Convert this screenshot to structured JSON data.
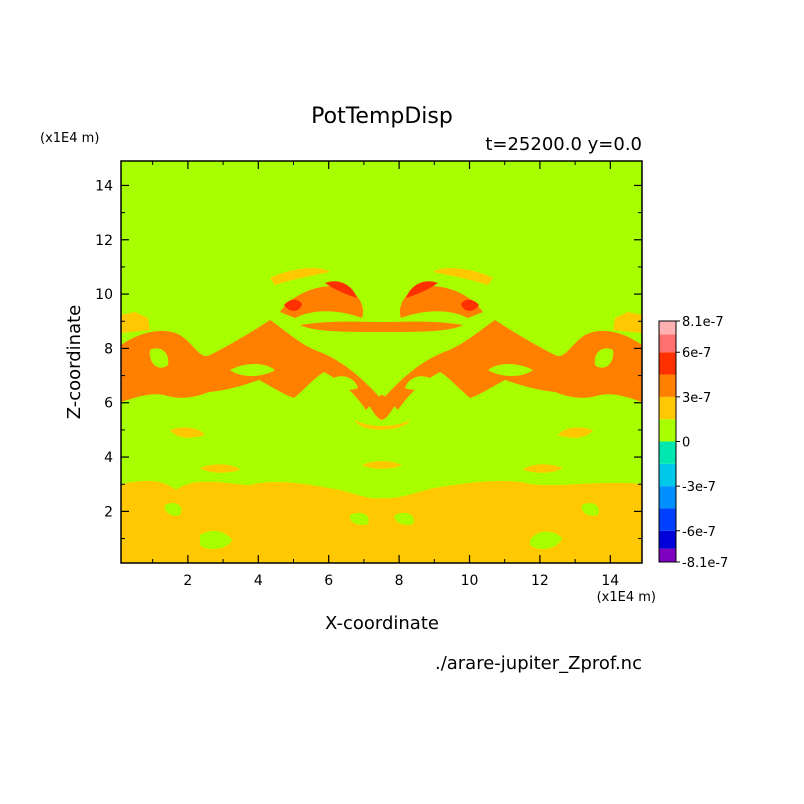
{
  "chart_data": {
    "type": "heatmap",
    "title": "PotTempDisp",
    "subtitle": "t=25200.0 y=0.0",
    "xlabel": "X-coordinate",
    "ylabel": "Z-coordinate",
    "x_unit": "(x1E4 m)",
    "y_unit": "(x1E4 m)",
    "source_file": "./arare-jupiter_Zprof.nc",
    "xlim": [
      0.1,
      14.9
    ],
    "ylim": [
      0.1,
      14.9
    ],
    "x_ticks": [
      2,
      4,
      6,
      8,
      10,
      12,
      14
    ],
    "y_ticks": [
      2,
      4,
      6,
      8,
      10,
      12,
      14
    ],
    "colorbar": {
      "tick_labels": [
        "8.1e-7",
        "6e-7",
        "3e-7",
        "0",
        "-3e-7",
        "-6e-7",
        "-8.1e-7"
      ],
      "levels": [
        -8.1e-07,
        -7.2e-07,
        -6e-07,
        -4.5e-07,
        -3e-07,
        -1.5e-07,
        0,
        1.5e-07,
        3e-07,
        4.5e-07,
        6e-07,
        7.2e-07,
        8.1e-07
      ],
      "colors": [
        "#7f00c0",
        "#0000d8",
        "#0040ff",
        "#0090ff",
        "#00c8e8",
        "#00e8b0",
        "#a8ff00",
        "#ffc800",
        "#ff8000",
        "#ff3000",
        "#ff7070",
        "#ffb0b0"
      ]
    },
    "regions": [
      {
        "level": "3e-7",
        "color": "#ffc800",
        "description": "lower layer z < about 3, arched top"
      },
      {
        "level": "0",
        "color": "#a8ff00",
        "description": "background"
      },
      {
        "level": "4.5e-7",
        "color": "#ff8000",
        "description": "band z about 6 to 9"
      },
      {
        "level": "6e-7",
        "color": "#ff3000",
        "description": "small patches near x about 5, 6.3, 9, 10.2 at z about 9.5"
      }
    ]
  }
}
